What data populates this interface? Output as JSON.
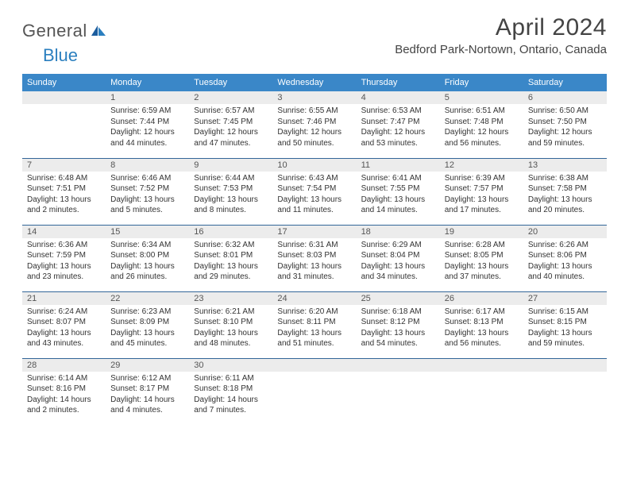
{
  "brand": {
    "part1": "General",
    "part2": "Blue"
  },
  "title": "April 2024",
  "location": "Bedford Park-Nortown, Ontario, Canada",
  "colors": {
    "header_bg": "#3a87c8",
    "header_text": "#ffffff",
    "daynum_bg": "#ececec",
    "rule": "#336699",
    "logo_accent": "#2b7fbf",
    "text": "#333333"
  },
  "typography": {
    "title_fontsize": 30,
    "location_fontsize": 15,
    "dayheader_fontsize": 11,
    "body_fontsize": 10
  },
  "day_headers": [
    "Sunday",
    "Monday",
    "Tuesday",
    "Wednesday",
    "Thursday",
    "Friday",
    "Saturday"
  ],
  "weeks": [
    [
      null,
      {
        "n": "1",
        "sunrise": "6:59 AM",
        "sunset": "7:44 PM",
        "daylight": "12 hours and 44 minutes."
      },
      {
        "n": "2",
        "sunrise": "6:57 AM",
        "sunset": "7:45 PM",
        "daylight": "12 hours and 47 minutes."
      },
      {
        "n": "3",
        "sunrise": "6:55 AM",
        "sunset": "7:46 PM",
        "daylight": "12 hours and 50 minutes."
      },
      {
        "n": "4",
        "sunrise": "6:53 AM",
        "sunset": "7:47 PM",
        "daylight": "12 hours and 53 minutes."
      },
      {
        "n": "5",
        "sunrise": "6:51 AM",
        "sunset": "7:48 PM",
        "daylight": "12 hours and 56 minutes."
      },
      {
        "n": "6",
        "sunrise": "6:50 AM",
        "sunset": "7:50 PM",
        "daylight": "12 hours and 59 minutes."
      }
    ],
    [
      {
        "n": "7",
        "sunrise": "6:48 AM",
        "sunset": "7:51 PM",
        "daylight": "13 hours and 2 minutes."
      },
      {
        "n": "8",
        "sunrise": "6:46 AM",
        "sunset": "7:52 PM",
        "daylight": "13 hours and 5 minutes."
      },
      {
        "n": "9",
        "sunrise": "6:44 AM",
        "sunset": "7:53 PM",
        "daylight": "13 hours and 8 minutes."
      },
      {
        "n": "10",
        "sunrise": "6:43 AM",
        "sunset": "7:54 PM",
        "daylight": "13 hours and 11 minutes."
      },
      {
        "n": "11",
        "sunrise": "6:41 AM",
        "sunset": "7:55 PM",
        "daylight": "13 hours and 14 minutes."
      },
      {
        "n": "12",
        "sunrise": "6:39 AM",
        "sunset": "7:57 PM",
        "daylight": "13 hours and 17 minutes."
      },
      {
        "n": "13",
        "sunrise": "6:38 AM",
        "sunset": "7:58 PM",
        "daylight": "13 hours and 20 minutes."
      }
    ],
    [
      {
        "n": "14",
        "sunrise": "6:36 AM",
        "sunset": "7:59 PM",
        "daylight": "13 hours and 23 minutes."
      },
      {
        "n": "15",
        "sunrise": "6:34 AM",
        "sunset": "8:00 PM",
        "daylight": "13 hours and 26 minutes."
      },
      {
        "n": "16",
        "sunrise": "6:32 AM",
        "sunset": "8:01 PM",
        "daylight": "13 hours and 29 minutes."
      },
      {
        "n": "17",
        "sunrise": "6:31 AM",
        "sunset": "8:03 PM",
        "daylight": "13 hours and 31 minutes."
      },
      {
        "n": "18",
        "sunrise": "6:29 AM",
        "sunset": "8:04 PM",
        "daylight": "13 hours and 34 minutes."
      },
      {
        "n": "19",
        "sunrise": "6:28 AM",
        "sunset": "8:05 PM",
        "daylight": "13 hours and 37 minutes."
      },
      {
        "n": "20",
        "sunrise": "6:26 AM",
        "sunset": "8:06 PM",
        "daylight": "13 hours and 40 minutes."
      }
    ],
    [
      {
        "n": "21",
        "sunrise": "6:24 AM",
        "sunset": "8:07 PM",
        "daylight": "13 hours and 43 minutes."
      },
      {
        "n": "22",
        "sunrise": "6:23 AM",
        "sunset": "8:09 PM",
        "daylight": "13 hours and 45 minutes."
      },
      {
        "n": "23",
        "sunrise": "6:21 AM",
        "sunset": "8:10 PM",
        "daylight": "13 hours and 48 minutes."
      },
      {
        "n": "24",
        "sunrise": "6:20 AM",
        "sunset": "8:11 PM",
        "daylight": "13 hours and 51 minutes."
      },
      {
        "n": "25",
        "sunrise": "6:18 AM",
        "sunset": "8:12 PM",
        "daylight": "13 hours and 54 minutes."
      },
      {
        "n": "26",
        "sunrise": "6:17 AM",
        "sunset": "8:13 PM",
        "daylight": "13 hours and 56 minutes."
      },
      {
        "n": "27",
        "sunrise": "6:15 AM",
        "sunset": "8:15 PM",
        "daylight": "13 hours and 59 minutes."
      }
    ],
    [
      {
        "n": "28",
        "sunrise": "6:14 AM",
        "sunset": "8:16 PM",
        "daylight": "14 hours and 2 minutes."
      },
      {
        "n": "29",
        "sunrise": "6:12 AM",
        "sunset": "8:17 PM",
        "daylight": "14 hours and 4 minutes."
      },
      {
        "n": "30",
        "sunrise": "6:11 AM",
        "sunset": "8:18 PM",
        "daylight": "14 hours and 7 minutes."
      },
      null,
      null,
      null,
      null
    ]
  ],
  "labels": {
    "sunrise": "Sunrise:",
    "sunset": "Sunset:",
    "daylight": "Daylight:"
  }
}
